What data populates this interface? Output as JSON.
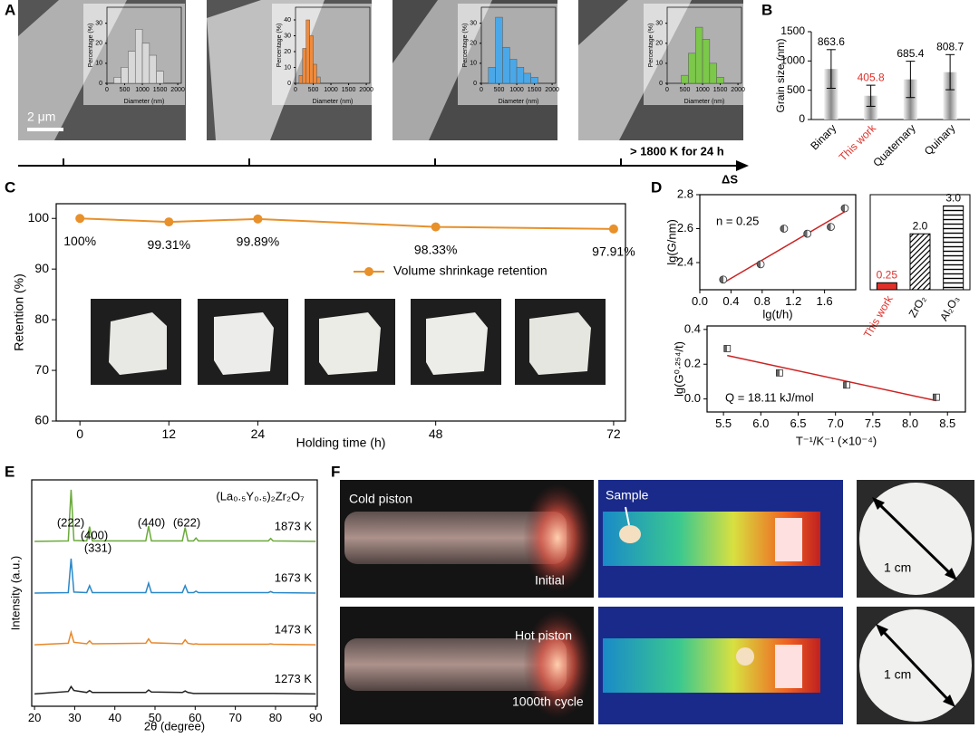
{
  "panel_labels": [
    "A",
    "B",
    "C",
    "D",
    "E",
    "F"
  ],
  "annotations": {
    "scale_bar": "2 μm",
    "condition": "> 1800 K for 24 h",
    "entropy_axis": "ΔS"
  },
  "photo_labels": [
    "Cold piston",
    "Initial",
    "Sample",
    "1 cm",
    "Hot piston",
    "1000th cycle",
    "1 cm"
  ],
  "chart_data": [
    {
      "type": "histogram",
      "xlabel": "Diameter (nm)",
      "ylabel": "Percentage (%)",
      "bins": [
        200,
        400,
        600,
        800,
        1000,
        1200,
        1400,
        1600
      ],
      "values": [
        3,
        8,
        16,
        27,
        20,
        14,
        6
      ],
      "color": "#d8d8d8",
      "xlim": [
        0,
        2100
      ],
      "ylim": [
        0,
        38
      ],
      "xticks": [
        0,
        500,
        1000,
        1500,
        2000
      ],
      "yticks": [
        0,
        10,
        20,
        30
      ]
    },
    {
      "type": "histogram",
      "xlabel": "Diameter (nm)",
      "ylabel": "Percentage (%)",
      "bins": [
        100,
        200,
        300,
        400,
        500,
        600,
        700
      ],
      "values": [
        5,
        22,
        40,
        30,
        12,
        4
      ],
      "color": "#f08a3a",
      "xlim": [
        0,
        2100
      ],
      "ylim": [
        0,
        48
      ],
      "xticks": [
        0,
        500,
        1000,
        1500,
        2000
      ],
      "yticks": [
        0,
        10,
        20,
        30,
        40
      ]
    },
    {
      "type": "histogram",
      "xlabel": "Diameter (nm)",
      "ylabel": "Percentage (%)",
      "bins": [
        200,
        400,
        600,
        800,
        1000,
        1200,
        1400,
        1600
      ],
      "values": [
        8,
        33,
        18,
        12,
        8,
        5,
        3
      ],
      "color": "#4aa8e8",
      "xlim": [
        0,
        2100
      ],
      "ylim": [
        0,
        38
      ],
      "xticks": [
        0,
        500,
        1000,
        1500,
        2000
      ],
      "yticks": [
        0,
        10,
        20,
        30
      ]
    },
    {
      "type": "histogram",
      "xlabel": "Diameter (nm)",
      "ylabel": "Percentage (%)",
      "bins": [
        400,
        600,
        800,
        1000,
        1200,
        1400,
        1600
      ],
      "values": [
        4,
        15,
        28,
        22,
        10,
        3
      ],
      "color": "#7cc84a",
      "xlim": [
        0,
        2100
      ],
      "ylim": [
        0,
        38
      ],
      "xticks": [
        0,
        500,
        1000,
        1500,
        2000
      ],
      "yticks": [
        0,
        10,
        20,
        30
      ]
    },
    {
      "type": "bar",
      "ylabel": "Grain size (nm)",
      "categories": [
        "Binary",
        "This work",
        "Quaternary",
        "Quinary"
      ],
      "values": [
        863.6,
        405.8,
        685.4,
        808.7
      ],
      "errors": [
        330,
        180,
        310,
        300
      ],
      "color": "#8a8a8a",
      "label_colors": [
        "#000000",
        "#e0302a",
        "#000000",
        "#000000"
      ],
      "ylim": [
        0,
        1500
      ],
      "yticks": [
        0,
        500,
        1000,
        1500
      ]
    },
    {
      "type": "line",
      "xlabel": "Holding time (h)",
      "ylabel": "Retention (%)",
      "x": [
        0,
        12,
        24,
        48,
        72
      ],
      "series": [
        {
          "name": "Volume shrinkage retention",
          "color": "#e8902a",
          "values": [
            100,
            99.31,
            99.89,
            98.33,
            97.91
          ],
          "value_labels": [
            "100%",
            "99.31%",
            "99.89%",
            "98.33%",
            "97.91%"
          ]
        }
      ],
      "xlim": [
        -3.2,
        73.6
      ],
      "ylim": [
        60,
        102.9
      ],
      "xticks": [
        0,
        12,
        24,
        48,
        72
      ],
      "yticks": [
        60,
        70,
        80,
        90,
        100
      ],
      "legend": "center right"
    },
    {
      "type": "scatter",
      "xlabel": "lg(t/h)",
      "ylabel": "lg(G/nm)",
      "annotation": "n = 0.25",
      "x": [
        0.3,
        0.78,
        1.08,
        1.38,
        1.68,
        1.86
      ],
      "values": [
        2.3,
        2.39,
        2.6,
        2.57,
        2.61,
        2.72
      ],
      "marker": "circle",
      "color": "#666666",
      "fit": {
        "x": [
          0.3,
          1.86
        ],
        "y": [
          2.28,
          2.7
        ],
        "color": "#cc2222"
      },
      "xlim": [
        0,
        2.0
      ],
      "ylim": [
        2.24,
        2.8
      ],
      "xticks": [
        {
          "value": 0,
          "label": "0.0"
        },
        0.4,
        0.8,
        1.2,
        1.6
      ],
      "yticks": [
        2.4,
        2.6,
        2.8
      ]
    },
    {
      "type": "bar",
      "categories": [
        "This work",
        "ZrO₂",
        "Al₂O₃"
      ],
      "values": [
        0.25,
        2.0,
        3.0
      ],
      "value_labels": [
        "0.25",
        "2.0",
        "3.0"
      ],
      "patterns": [
        "solid",
        "diagonal",
        "horizontal"
      ],
      "color": "#e0302a",
      "label_colors": [
        "#e0302a",
        "#000000",
        "#000000"
      ],
      "ylim": [
        0,
        3.4
      ]
    },
    {
      "type": "scatter",
      "xlabel": "T⁻¹/K⁻¹ (×10⁻⁴)",
      "ylabel": "lg(G⁰·²⁵⁴/t)",
      "annotation": "Q = 18.11 kJ/mol",
      "x": [
        5.55,
        6.25,
        7.15,
        8.35
      ],
      "values": [
        0.29,
        0.15,
        0.08,
        0.01
      ],
      "marker": "square",
      "color": "#666666",
      "fit": {
        "x": [
          5.55,
          8.35
        ],
        "y": [
          0.25,
          -0.01
        ],
        "color": "#cc2222"
      },
      "xlim": [
        5.28,
        8.74
      ],
      "ylim": [
        -0.075,
        0.42
      ],
      "xticks": [
        5.5,
        {
          "value": 6,
          "label": "6.0"
        },
        6.5,
        {
          "value": 7,
          "label": "7.0"
        },
        7.5,
        {
          "value": 8,
          "label": "8.0"
        },
        8.5
      ],
      "yticks": [
        {
          "value": 0,
          "label": "0.0"
        },
        0.2,
        0.4
      ]
    },
    {
      "type": "line",
      "xlabel": "2θ (degree)",
      "ylabel": "Intensity (a.u.)",
      "formula": "(La₀.₅Y₀.₅)₂Zr₂O₇",
      "peak_labels": [
        "(222)",
        "(400)",
        "(331)",
        "(440)",
        "(622)"
      ],
      "x": [
        20,
        28.4,
        29.1,
        29.8,
        33.0,
        33.7,
        34.4,
        47.7,
        48.4,
        49.1,
        56.8,
        57.5,
        58.2,
        59.6,
        60.2,
        60.8,
        78.2,
        78.8,
        79.4,
        90
      ],
      "series": [
        {
          "name": "1873 K",
          "color": "#6aaa3a",
          "values": [
            3.35,
            3.36,
            4.4,
            3.37,
            3.36,
            3.65,
            3.36,
            3.36,
            3.66,
            3.36,
            3.36,
            3.63,
            3.36,
            3.36,
            3.42,
            3.36,
            3.36,
            3.41,
            3.36,
            3.35
          ]
        },
        {
          "name": "1673 K",
          "color": "#2a88c8",
          "values": [
            2.3,
            2.31,
            3.0,
            2.32,
            2.31,
            2.45,
            2.31,
            2.31,
            2.5,
            2.31,
            2.31,
            2.45,
            2.31,
            2.31,
            2.34,
            2.31,
            2.31,
            2.33,
            2.31,
            2.3
          ]
        },
        {
          "name": "1473 K",
          "color": "#e8872a",
          "values": [
            1.25,
            1.28,
            1.5,
            1.3,
            1.27,
            1.33,
            1.27,
            1.28,
            1.37,
            1.29,
            1.27,
            1.35,
            1.28,
            1.26,
            1.27,
            1.26,
            1.26,
            1.27,
            1.26,
            1.25
          ]
        },
        {
          "name": "1273 K",
          "color": "#222222",
          "values": [
            0.25,
            0.3,
            0.4,
            0.32,
            0.28,
            0.32,
            0.28,
            0.28,
            0.33,
            0.29,
            0.28,
            0.31,
            0.28,
            0.26,
            0.26,
            0.26,
            0.26,
            0.26,
            0.26,
            0.25
          ]
        }
      ],
      "xlim": [
        19.3,
        90.4
      ],
      "ylim": [
        0,
        4.6
      ],
      "xticks": [
        20,
        30,
        40,
        50,
        60,
        70,
        80,
        90
      ]
    }
  ]
}
